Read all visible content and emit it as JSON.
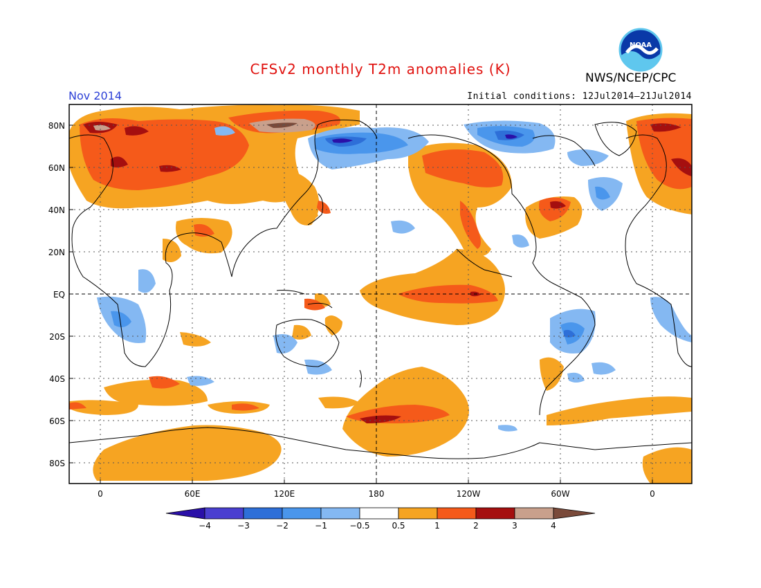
{
  "header": {
    "title": "CFSv2 monthly T2m anomalies (K)",
    "agency": "NWS/NCEP/CPC",
    "valid_month": "Nov 2014",
    "initial_conditions": "Initial conditions: 12Jul2014–21Jul2014",
    "logo_text": "NOAA"
  },
  "map": {
    "lat_labels": [
      "80N",
      "60N",
      "40N",
      "20N",
      "EQ",
      "20S",
      "40S",
      "60S",
      "80S"
    ],
    "lon_labels": [
      "0",
      "60E",
      "120E",
      "180",
      "120W",
      "60W",
      "0"
    ]
  },
  "colorbar": {
    "tick_labels": [
      "−4",
      "−3",
      "−2",
      "−1",
      "−0.5",
      "0.5",
      "1",
      "2",
      "3",
      "4"
    ],
    "colors": [
      "#2a10a8",
      "#4a3fd0",
      "#2e6fd8",
      "#4a96ec",
      "#84b8f2",
      "#ffffff",
      "#f6a422",
      "#f55a1a",
      "#a50f0f",
      "#c9a08c",
      "#7a4a3a"
    ]
  }
}
